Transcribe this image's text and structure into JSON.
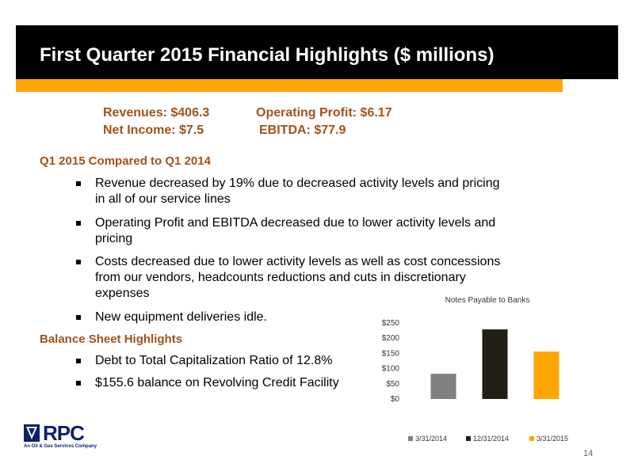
{
  "header": {
    "title": "First Quarter 2015 Financial Highlights ($ millions)",
    "accent_color": "#FFA500",
    "bar_color": "#000000"
  },
  "kpis": {
    "revenues": "Revenues: $406.3",
    "operating_profit": "Operating Profit: $6.17",
    "net_income": "Net Income:  $7.5",
    "ebitda": "EBITDA:  $77.9",
    "color": "#A0521B"
  },
  "comparison": {
    "heading": "Q1 2015 Compared to Q1 2014",
    "bullets": [
      "Revenue decreased by 19% due to decreased activity levels and pricing in all of our service lines",
      "Operating Profit and EBITDA decreased due to lower activity levels and pricing",
      "Costs decreased due to lower activity levels as well as cost concessions from our vendors, headcounts reductions and cuts in discretionary expenses",
      "New equipment deliveries idle."
    ]
  },
  "balance_sheet": {
    "heading": "Balance Sheet Highlights",
    "bullets": [
      "Debt to Total Capitalization Ratio of 12.8%",
      "$155.6 balance on Revolving Credit Facility"
    ]
  },
  "chart_data": {
    "type": "bar",
    "title": "Notes Payable to Banks",
    "categories": [
      "3/31/2014",
      "12/31/2014",
      "3/31/2015"
    ],
    "values": [
      83,
      229,
      156
    ],
    "colors": [
      "#808080",
      "#231F14",
      "#FFA500"
    ],
    "ylim": [
      0,
      250
    ],
    "yticks": [
      0,
      50,
      100,
      150,
      200,
      250
    ],
    "ytick_labels": [
      "$0",
      "$50",
      "$100",
      "$150",
      "$200",
      "$250"
    ],
    "legend": [
      "3/31/2014",
      "12/31/2014",
      "3/31/2015"
    ],
    "legend_position": "bottom",
    "grid": false
  },
  "footer": {
    "logo_name": "RPC",
    "logo_tagline": "An Oil & Gas Services Company",
    "page_number": "14"
  }
}
